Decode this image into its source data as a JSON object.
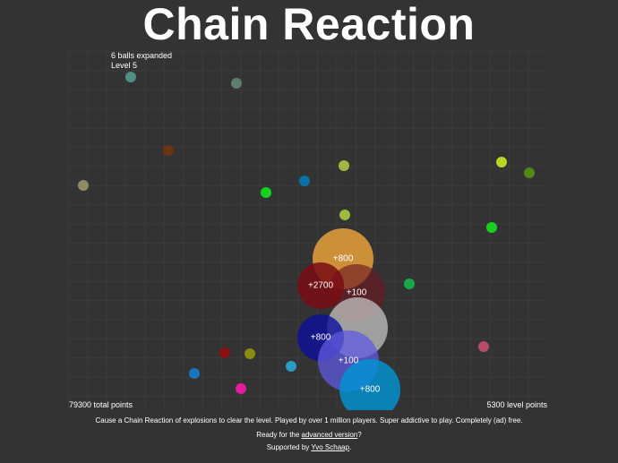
{
  "title": "Chain Reaction",
  "hud": {
    "balls_expanded": "6 balls expanded",
    "level": "Level 5"
  },
  "total_points": "79300 total points",
  "level_points": "5300 level points",
  "footer": {
    "line1": "Cause a Chain Reaction of explosions to clear the level. Played by over 1 million players. Super addictive to play. Completely (ad) free.",
    "line2_prefix": "Ready for the ",
    "line2_link": "advanced version",
    "line2_suffix": "?",
    "line3_prefix": "Supported by ",
    "line3_link": "Yvo Schaap",
    "line3_suffix": "."
  },
  "balls": [
    {
      "color": "#4f8f86"
    },
    {
      "color": "#5f7d6e"
    },
    {
      "color": "#6b3312"
    },
    {
      "color": "#8f8a62"
    },
    {
      "color": "#a3b545"
    },
    {
      "color": "#0b6fa8"
    },
    {
      "color": "#12d41c"
    },
    {
      "color": "#9dbb3a"
    },
    {
      "color": "#b8d624"
    },
    {
      "color": "#4e8a14"
    },
    {
      "color": "#16d020"
    },
    {
      "color": "#18a84a"
    },
    {
      "color": "#b84a6a"
    },
    {
      "color": "#8c0f12"
    },
    {
      "color": "#8a8c10"
    },
    {
      "color": "#1674c0"
    },
    {
      "color": "#2a9ac6"
    },
    {
      "color": "#e21c9c"
    }
  ],
  "explosions": [
    {
      "color": "#f2a83a",
      "label": "+800"
    },
    {
      "color": "#6b1822",
      "label": "+100"
    },
    {
      "color": "#7a0c14",
      "label": "+2700"
    },
    {
      "color": "#c4c4c4",
      "label": ""
    },
    {
      "color": "#0c0f9a",
      "label": "+800"
    },
    {
      "color": "#5f5ae0",
      "label": "+100"
    },
    {
      "color": "#0096d6",
      "label": "+800"
    }
  ]
}
